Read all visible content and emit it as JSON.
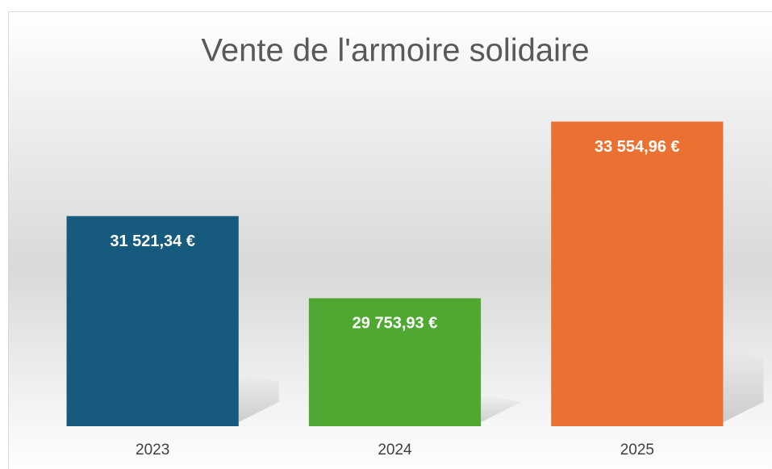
{
  "chart_data": {
    "type": "bar",
    "title": "Vente de l'armoire solidaire",
    "categories": [
      "2023",
      "2024",
      "2025"
    ],
    "values": [
      31521.34,
      29753.93,
      33554.96
    ],
    "value_labels": [
      "31 521,34 €",
      "29 753,93 €",
      "33 554,96 €"
    ],
    "colors": [
      "#165a7e",
      "#4fa832",
      "#ea7131"
    ],
    "ylim": [
      27000,
      34000
    ]
  }
}
